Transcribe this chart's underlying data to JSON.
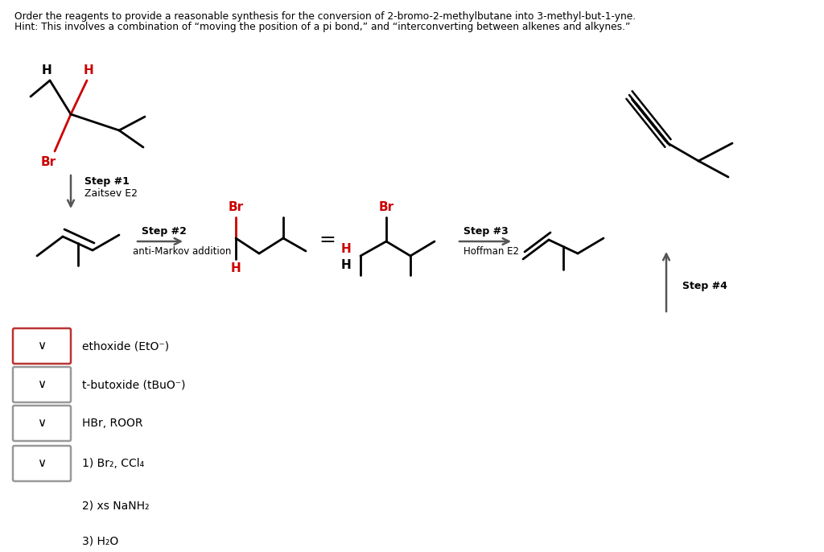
{
  "title_line1": "Order the reagents to provide a reasonable synthesis for the conversion of 2-bromo-2-methylbutane into 3-methyl-but-1-yne.",
  "title_line2": "Hint: This involves a combination of “moving the position of a pi bond,” and “interconverting between alkenes and alkynes.”",
  "step1_label": "Step #1",
  "step1_sublabel": "Zaitsev E2",
  "step2_label": "Step #2",
  "step2_sublabel": "anti-Markov addition",
  "step3_label": "Step #3",
  "step3_sublabel": "Hoffman E2",
  "step4_label": "Step #4",
  "reagent1": "ethoxide (EtO⁻)",
  "reagent2": "t-butoxide (tBuO⁻)",
  "reagent3": "HBr, ROOR",
  "reagent4": "1) Br₂, CCl₄",
  "reagent5": "2) xs NaNH₂",
  "reagent6": "3) H₂O",
  "red": "#cc0000",
  "black": "#000000",
  "dark_gray": "#555555",
  "box_red": "#bb3333",
  "box_gray": "#999999",
  "bg": "#ffffff"
}
